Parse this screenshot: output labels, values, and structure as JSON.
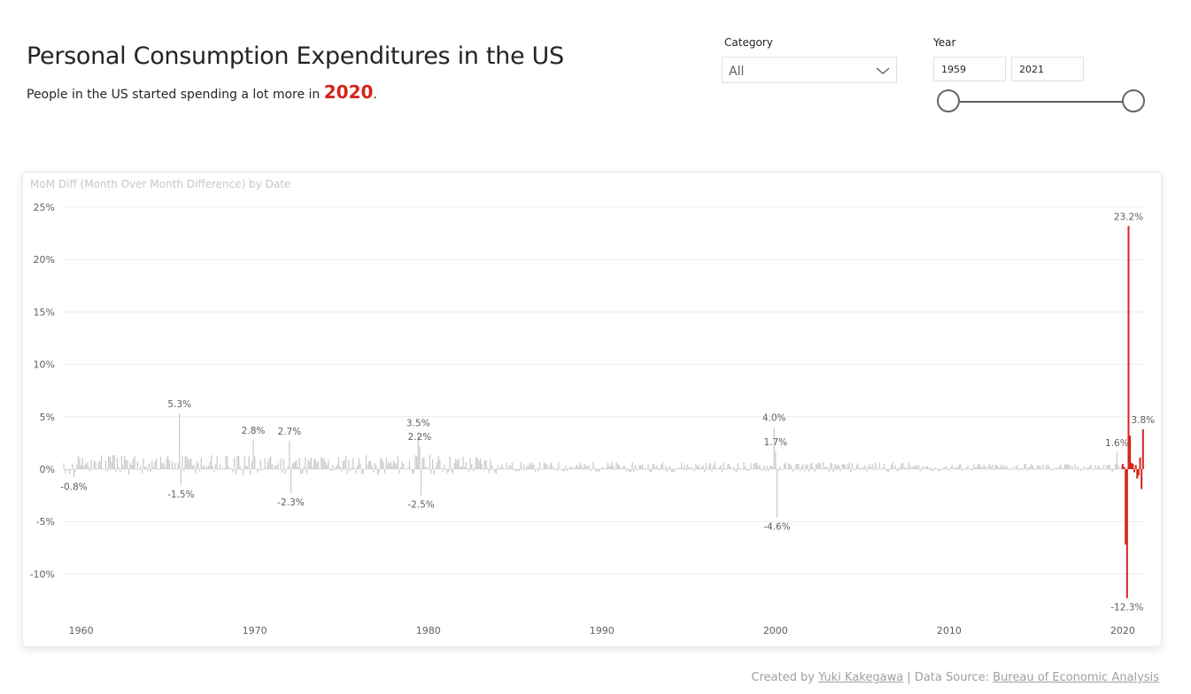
{
  "header": {
    "title": "Personal Consumption Expenditures in the US",
    "subtitle_prefix": "People in the US started spending a lot more in ",
    "subtitle_highlight": "2020",
    "subtitle_suffix": "."
  },
  "filters": {
    "category": {
      "label": "Category",
      "value": "All"
    },
    "year": {
      "label": "Year",
      "start": "1959",
      "end": "2021"
    }
  },
  "footer": {
    "created_by_prefix": "Created by ",
    "author": "Yuki Kakegawa",
    "separator": " | Data Source: ",
    "source": "Bureau of Economic Analysis"
  },
  "colors": {
    "highlight": "#d6231c",
    "bar": "#c8c8c8",
    "grid": "#ececec"
  },
  "chart_data": {
    "type": "bar",
    "title": "MoM Diff (Month Over Month Difference) by Date",
    "xlabel": "",
    "ylabel": "",
    "xlim": [
      1959.0,
      2021.33
    ],
    "ylim": [
      -12.5,
      25
    ],
    "y_ticks": [
      "25%",
      "20%",
      "15%",
      "10%",
      "5%",
      "0%",
      "-5%",
      "-10%"
    ],
    "y_tick_values": [
      25,
      20,
      15,
      10,
      5,
      0,
      -5,
      -10
    ],
    "x_ticks": [
      "1960",
      "1970",
      "1980",
      "1990",
      "2000",
      "2010",
      "2020"
    ],
    "x_tick_values": [
      1960,
      1970,
      1980,
      1990,
      2000,
      2010,
      2020
    ],
    "grid": true,
    "highlight_series": {
      "name": "2020",
      "x": [
        "2020-01",
        "2020-02",
        "2020-03",
        "2020-04",
        "2020-05",
        "2020-06",
        "2020-07",
        "2020-08",
        "2020-09",
        "2020-10",
        "2020-11",
        "2020-12",
        "2021-01",
        "2021-02",
        "2021-03"
      ],
      "values": [
        0.5,
        0.2,
        -7.2,
        -12.3,
        23.2,
        3.2,
        0.6,
        0.5,
        -0.3,
        0.4,
        -0.9,
        -0.6,
        1.1,
        -1.9,
        3.8
      ]
    },
    "data_labels": [
      {
        "date": "1959-08",
        "value": "-0.8%"
      },
      {
        "date": "1965-09",
        "value": "5.3%"
      },
      {
        "date": "1965-10",
        "value": "-1.5%"
      },
      {
        "date": "1969-12",
        "value": "2.8%"
      },
      {
        "date": "1972-01",
        "value": "2.7%"
      },
      {
        "date": "1972-02",
        "value": "-2.3%"
      },
      {
        "date": "1979-06",
        "value": "3.5%"
      },
      {
        "date": "1979-07",
        "value": "2.2%"
      },
      {
        "date": "1979-08",
        "value": "-2.5%"
      },
      {
        "date": "1999-12",
        "value": "4.0%"
      },
      {
        "date": "2000-01",
        "value": "1.7%"
      },
      {
        "date": "2000-02",
        "value": "-4.6%"
      },
      {
        "date": "2019-09",
        "value": "1.6%"
      },
      {
        "date": "2020-04",
        "value": "-12.3%"
      },
      {
        "date": "2020-05",
        "value": "23.2%"
      },
      {
        "date": "2021-03",
        "value": "3.8%"
      }
    ]
  }
}
